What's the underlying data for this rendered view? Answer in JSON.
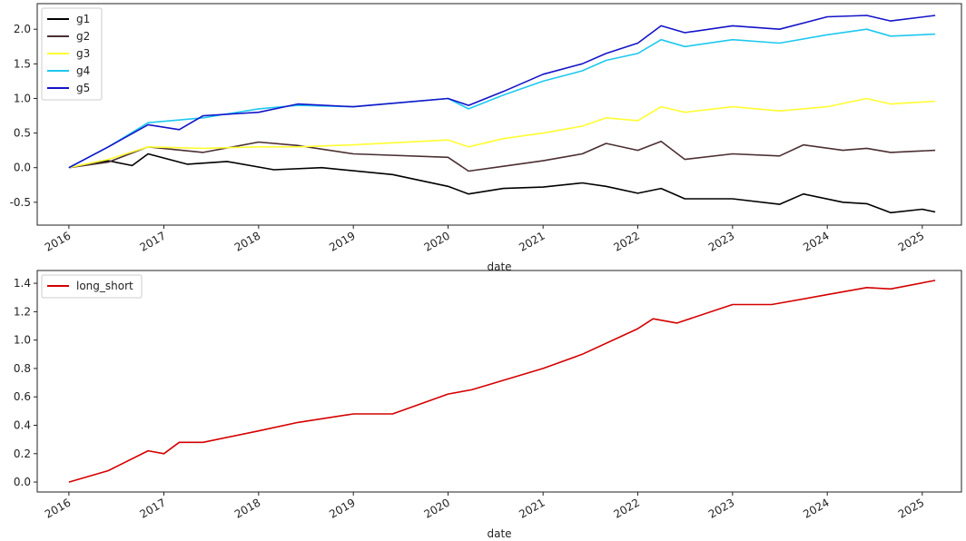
{
  "chart_data": [
    {
      "type": "line",
      "title": "",
      "xlabel": "date",
      "ylabel": "",
      "x_range": [
        "2015-09-01",
        "2025-06-01"
      ],
      "ylim": [
        -0.83,
        2.37
      ],
      "x_ticks": [
        "2016",
        "2017",
        "2018",
        "2019",
        "2020",
        "2021",
        "2022",
        "2023",
        "2024",
        "2025"
      ],
      "y_ticks": [
        -0.5,
        0.0,
        0.5,
        1.0,
        1.5,
        2.0
      ],
      "y_tick_labels": [
        "-0.5",
        "0.0",
        "0.5",
        "1.0",
        "1.5",
        "2.0"
      ],
      "grid": false,
      "legend_position": "top-left",
      "series": [
        {
          "name": "g1",
          "color": "#000000",
          "x": [
            "2016-01-01",
            "2016-06-01",
            "2016-09-01",
            "2016-11-01",
            "2017-04-01",
            "2017-09-01",
            "2018-03-01",
            "2018-09-01",
            "2019-06-01",
            "2020-01-01",
            "2020-03-20",
            "2020-08-01",
            "2021-01-01",
            "2021-06-01",
            "2021-09-01",
            "2022-01-01",
            "2022-04-01",
            "2022-07-01",
            "2023-01-01",
            "2023-07-01",
            "2023-10-01",
            "2024-03-01",
            "2024-06-01",
            "2024-09-01",
            "2025-01-01",
            "2025-02-20"
          ],
          "y": [
            0.0,
            0.1,
            0.03,
            0.2,
            0.05,
            0.09,
            -0.03,
            0.0,
            -0.1,
            -0.27,
            -0.38,
            -0.3,
            -0.28,
            -0.22,
            -0.27,
            -0.37,
            -0.3,
            -0.45,
            -0.45,
            -0.53,
            -0.38,
            -0.5,
            -0.52,
            -0.65,
            -0.6,
            -0.64
          ]
        },
        {
          "name": "g2",
          "color": "#4b2f32",
          "x": [
            "2016-01-01",
            "2016-06-01",
            "2016-11-01",
            "2017-06-01",
            "2018-01-01",
            "2018-06-01",
            "2019-01-01",
            "2020-01-01",
            "2020-03-20",
            "2020-08-01",
            "2021-01-01",
            "2021-06-01",
            "2021-09-01",
            "2022-01-01",
            "2022-04-01",
            "2022-07-01",
            "2023-01-01",
            "2023-07-01",
            "2023-10-01",
            "2024-03-01",
            "2024-06-01",
            "2024-09-01",
            "2025-02-20"
          ],
          "y": [
            0.0,
            0.08,
            0.3,
            0.22,
            0.37,
            0.32,
            0.2,
            0.15,
            -0.05,
            0.02,
            0.1,
            0.2,
            0.35,
            0.25,
            0.38,
            0.12,
            0.2,
            0.17,
            0.33,
            0.25,
            0.28,
            0.22,
            0.25
          ]
        },
        {
          "name": "g3",
          "color": "#ffff33",
          "x": [
            "2016-01-01",
            "2016-06-01",
            "2016-11-01",
            "2017-06-01",
            "2018-01-01",
            "2018-06-01",
            "2019-01-01",
            "2020-01-01",
            "2020-03-20",
            "2020-08-01",
            "2021-01-01",
            "2021-06-01",
            "2021-09-01",
            "2022-01-01",
            "2022-04-01",
            "2022-07-01",
            "2023-01-01",
            "2023-07-01",
            "2024-01-01",
            "2024-06-01",
            "2024-09-01",
            "2025-02-20"
          ],
          "y": [
            0.0,
            0.12,
            0.3,
            0.28,
            0.3,
            0.3,
            0.33,
            0.4,
            0.3,
            0.42,
            0.5,
            0.6,
            0.72,
            0.68,
            0.88,
            0.8,
            0.88,
            0.82,
            0.88,
            1.0,
            0.92,
            0.96
          ]
        },
        {
          "name": "g4",
          "color": "#1ec8ef",
          "x": [
            "2016-01-01",
            "2016-06-01",
            "2016-11-01",
            "2017-06-01",
            "2018-01-01",
            "2018-06-01",
            "2019-01-01",
            "2020-01-01",
            "2020-03-20",
            "2020-08-01",
            "2021-01-01",
            "2021-06-01",
            "2021-09-01",
            "2022-01-01",
            "2022-04-01",
            "2022-07-01",
            "2023-01-01",
            "2023-07-01",
            "2024-01-01",
            "2024-06-01",
            "2024-09-01",
            "2025-02-20"
          ],
          "y": [
            0.0,
            0.3,
            0.65,
            0.72,
            0.85,
            0.9,
            0.88,
            1.0,
            0.85,
            1.05,
            1.25,
            1.4,
            1.55,
            1.65,
            1.85,
            1.75,
            1.85,
            1.8,
            1.92,
            2.0,
            1.9,
            1.93
          ]
        },
        {
          "name": "g5",
          "color": "#1414c8",
          "x": [
            "2016-01-01",
            "2016-06-01",
            "2016-11-01",
            "2017-03-01",
            "2017-06-01",
            "2018-01-01",
            "2018-06-01",
            "2019-01-01",
            "2020-01-01",
            "2020-03-20",
            "2020-08-01",
            "2021-01-01",
            "2021-06-01",
            "2021-09-01",
            "2022-01-01",
            "2022-04-01",
            "2022-07-01",
            "2023-01-01",
            "2023-07-01",
            "2024-01-01",
            "2024-06-01",
            "2024-09-01",
            "2025-02-20"
          ],
          "y": [
            0.0,
            0.3,
            0.62,
            0.55,
            0.75,
            0.8,
            0.92,
            0.88,
            1.0,
            0.9,
            1.1,
            1.35,
            1.5,
            1.65,
            1.8,
            2.05,
            1.95,
            2.05,
            2.0,
            2.18,
            2.2,
            2.12,
            2.2
          ]
        }
      ]
    },
    {
      "type": "line",
      "title": "",
      "xlabel": "date",
      "ylabel": "",
      "x_range": [
        "2015-09-01",
        "2025-06-01"
      ],
      "ylim": [
        -0.07,
        1.49
      ],
      "x_ticks": [
        "2016",
        "2017",
        "2018",
        "2019",
        "2020",
        "2021",
        "2022",
        "2023",
        "2024",
        "2025"
      ],
      "y_ticks": [
        0.0,
        0.2,
        0.4,
        0.6,
        0.8,
        1.0,
        1.2,
        1.4
      ],
      "y_tick_labels": [
        "0.0",
        "0.2",
        "0.4",
        "0.6",
        "0.8",
        "1.0",
        "1.2",
        "1.4"
      ],
      "grid": false,
      "legend_position": "top-left",
      "series": [
        {
          "name": "long_short",
          "color": "#d40000",
          "x": [
            "2016-01-01",
            "2016-06-01",
            "2016-11-01",
            "2017-01-01",
            "2017-03-01",
            "2017-06-01",
            "2018-01-01",
            "2018-06-01",
            "2019-01-01",
            "2019-06-01",
            "2020-01-01",
            "2020-04-01",
            "2020-07-01",
            "2021-01-01",
            "2021-06-01",
            "2022-01-01",
            "2022-03-01",
            "2022-06-01",
            "2023-01-01",
            "2023-06-01",
            "2024-01-01",
            "2024-06-01",
            "2024-09-01",
            "2025-02-20"
          ],
          "y": [
            0.0,
            0.08,
            0.22,
            0.2,
            0.28,
            0.28,
            0.36,
            0.42,
            0.48,
            0.48,
            0.62,
            0.65,
            0.7,
            0.8,
            0.9,
            1.08,
            1.15,
            1.12,
            1.25,
            1.25,
            1.32,
            1.37,
            1.36,
            1.42
          ]
        }
      ]
    }
  ]
}
